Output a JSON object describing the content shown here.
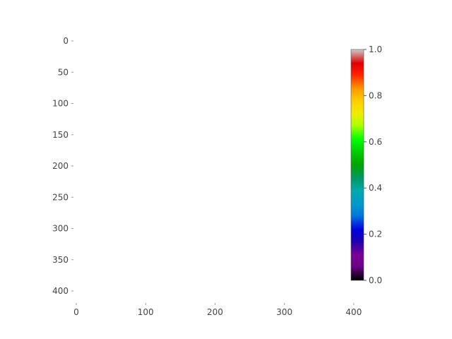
{
  "chart_data": {
    "type": "heatmap",
    "title": "",
    "xlabel": "",
    "ylabel": "",
    "x_ticks": [
      "0",
      "100",
      "200",
      "300",
      "400"
    ],
    "y_ticks": [
      "0",
      "50",
      "100",
      "150",
      "200",
      "250",
      "300",
      "350",
      "400"
    ],
    "xlim": [
      0,
      450
    ],
    "ylim": [
      0,
      400
    ],
    "y_inverted": true,
    "grid": false,
    "values": [],
    "colorbar": {
      "colormap": "nipy_spectral",
      "range": [
        0.0,
        1.0
      ],
      "tick_labels": [
        "0.0",
        "0.2",
        "0.4",
        "0.6",
        "0.8",
        "1.0"
      ],
      "tick_values": [
        0.0,
        0.2,
        0.4,
        0.6,
        0.8,
        1.0
      ],
      "position": "right"
    }
  },
  "colors": {
    "background": "#ffffff",
    "text": "#444444",
    "tick": "#9a9a9a",
    "colorbar_stops": [
      {
        "v": 0.0,
        "c": "#000000"
      },
      {
        "v": 0.06,
        "c": "#6b0085"
      },
      {
        "v": 0.11,
        "c": "#7a0096"
      },
      {
        "v": 0.17,
        "c": "#1a00b0"
      },
      {
        "v": 0.22,
        "c": "#0000dd"
      },
      {
        "v": 0.28,
        "c": "#0077dd"
      },
      {
        "v": 0.33,
        "c": "#0099cc"
      },
      {
        "v": 0.39,
        "c": "#00aaaa"
      },
      {
        "v": 0.44,
        "c": "#009966"
      },
      {
        "v": 0.5,
        "c": "#00a300"
      },
      {
        "v": 0.56,
        "c": "#00d000"
      },
      {
        "v": 0.61,
        "c": "#00ff00"
      },
      {
        "v": 0.67,
        "c": "#aaff00"
      },
      {
        "v": 0.72,
        "c": "#eeee00"
      },
      {
        "v": 0.78,
        "c": "#ffcc00"
      },
      {
        "v": 0.83,
        "c": "#ff9900"
      },
      {
        "v": 0.89,
        "c": "#ff2200"
      },
      {
        "v": 0.94,
        "c": "#dd0000"
      },
      {
        "v": 1.0,
        "c": "#cccccc"
      }
    ]
  }
}
